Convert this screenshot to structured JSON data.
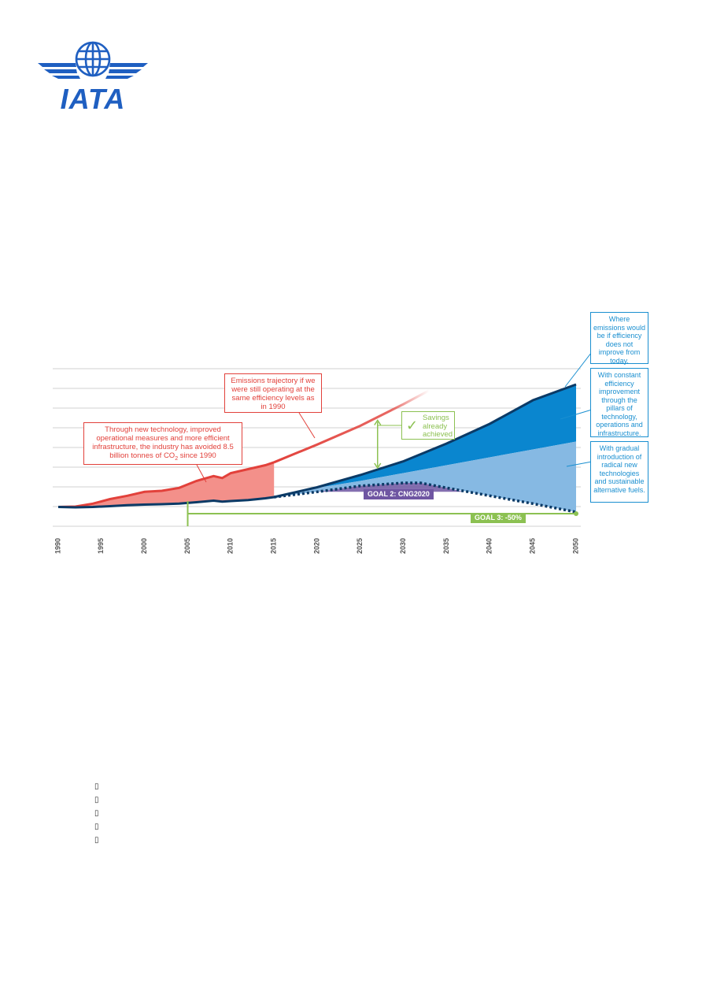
{
  "logo": {
    "text": "IATA",
    "color": "#1f5fc1"
  },
  "chart_data": {
    "type": "area",
    "title": "",
    "xlabel": "",
    "ylabel": "",
    "x_ticks": [
      "1990",
      "1995",
      "2000",
      "2005",
      "2010",
      "2015",
      "2020",
      "2025",
      "2030",
      "2035",
      "2040",
      "2045",
      "2050"
    ],
    "xlim": [
      1990,
      2050
    ],
    "ylim": [
      0,
      8
    ],
    "grid": true,
    "series": [
      {
        "name": "",
        "color": "#e2413b",
        "points": [
          [
            1990,
            0.98
          ],
          [
            1992,
            1.0
          ],
          [
            1994,
            1.15
          ],
          [
            1996,
            1.38
          ],
          [
            1998,
            1.55
          ],
          [
            2000,
            1.75
          ],
          [
            2002,
            1.8
          ],
          [
            2004,
            1.95
          ],
          [
            2006,
            2.3
          ],
          [
            2008,
            2.55
          ],
          [
            2009,
            2.45
          ],
          [
            2010,
            2.7
          ],
          [
            2012,
            2.9
          ],
          [
            2014,
            3.1
          ],
          [
            2015,
            3.25
          ],
          [
            2020,
            4.15
          ],
          [
            2025,
            5.1
          ],
          [
            2030,
            6.2
          ],
          [
            2033,
            6.9
          ]
        ]
      },
      {
        "name": "",
        "color": "#0b3a66",
        "points": [
          [
            1990,
            0.98
          ],
          [
            1992,
            0.96
          ],
          [
            1994,
            0.98
          ],
          [
            1996,
            1.02
          ],
          [
            1998,
            1.07
          ],
          [
            2000,
            1.1
          ],
          [
            2002,
            1.12
          ],
          [
            2004,
            1.15
          ],
          [
            2006,
            1.22
          ],
          [
            2008,
            1.3
          ],
          [
            2009,
            1.25
          ],
          [
            2010,
            1.28
          ],
          [
            2012,
            1.33
          ],
          [
            2014,
            1.42
          ],
          [
            2015,
            1.48
          ],
          [
            2020,
            1.98
          ],
          [
            2025,
            2.6
          ],
          [
            2030,
            3.3
          ],
          [
            2035,
            4.2
          ],
          [
            2040,
            5.2
          ],
          [
            2045,
            6.4
          ],
          [
            2050,
            7.2
          ]
        ]
      },
      {
        "name": "",
        "color": "#8ab4e0",
        "points": [
          [
            2015,
            1.48
          ],
          [
            2020,
            1.95
          ],
          [
            2025,
            2.3
          ],
          [
            2030,
            2.7
          ],
          [
            2035,
            3.1
          ],
          [
            2040,
            3.5
          ],
          [
            2045,
            3.9
          ],
          [
            2050,
            4.3
          ]
        ]
      },
      {
        "name": "",
        "color": "#0b3a66",
        "dashed": true,
        "points": [
          [
            2015,
            1.48
          ],
          [
            2020,
            1.75
          ],
          [
            2025,
            2.05
          ],
          [
            2030,
            2.2
          ],
          [
            2032,
            2.2
          ],
          [
            2035,
            1.95
          ],
          [
            2040,
            1.55
          ],
          [
            2045,
            1.15
          ],
          [
            2050,
            0.72
          ]
        ]
      }
    ],
    "annotations": {
      "blue_callouts": [
        "Where emissions would be if efficiency does not improve from today.",
        "With constant efficiency improvement through the pillars of technology, operations and infrastructure.",
        "With gradual introduction of radical new technologies and sustainable alternative fuels."
      ],
      "trajectory_callout": "Emissions trajectory if we were still operating at the same efficiency levels as in 1990",
      "avoided_callout_a": "Through new technology, improved operational measures and more efficient infrastructure, the industry has avoided 8.5 billion tonnes of CO",
      "avoided_callout_sub": "2",
      "avoided_callout_b": " since 1990",
      "savings_callout": "Savings already achieved",
      "goal2": "GOAL 2: CNG2020",
      "goal3": "GOAL 3: -50%"
    },
    "colors": {
      "red": "#e2413b",
      "red_fill": "#f3908a",
      "navy": "#0b3a66",
      "mid_blue": "#0a86cf",
      "light_blue": "#86b9e3",
      "purple": "#6f56a2",
      "green": "#8cc152"
    }
  },
  "bullets": [
    "",
    "",
    "",
    "",
    ""
  ]
}
